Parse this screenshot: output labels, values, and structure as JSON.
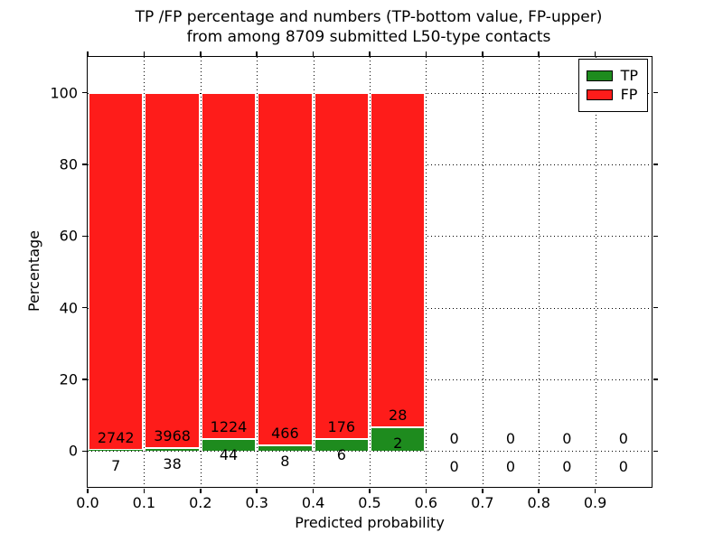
{
  "chart_data": {
    "type": "bar",
    "subtype": "stacked-percentage-histogram",
    "title_line1": "TP /FP percentage and numbers (TP-bottom value, FP-upper)",
    "title_line2": "from among 8709 submitted L50-type contacts",
    "xlabel": "Predicted probability",
    "ylabel": "Percentage",
    "xlim": [
      0.0,
      1.0
    ],
    "ylim": [
      -10,
      110
    ],
    "xticks": {
      "values": [
        0.0,
        0.1,
        0.2,
        0.3,
        0.4,
        0.5,
        0.6,
        0.7,
        0.8,
        0.9
      ],
      "labels": [
        "0.0",
        "0.1",
        "0.2",
        "0.3",
        "0.4",
        "0.5",
        "0.6",
        "0.7",
        "0.8",
        "0.9"
      ]
    },
    "yticks": {
      "values": [
        0,
        20,
        40,
        60,
        80,
        100
      ],
      "labels": [
        "0",
        "20",
        "40",
        "60",
        "80",
        "100"
      ]
    },
    "grid": "dotted",
    "bars": [
      {
        "range": [
          0.0,
          0.1
        ],
        "tp": 7,
        "fp": 2742
      },
      {
        "range": [
          0.1,
          0.2
        ],
        "tp": 38,
        "fp": 3968
      },
      {
        "range": [
          0.2,
          0.3
        ],
        "tp": 44,
        "fp": 1224
      },
      {
        "range": [
          0.3,
          0.4
        ],
        "tp": 8,
        "fp": 466
      },
      {
        "range": [
          0.4,
          0.5
        ],
        "tp": 6,
        "fp": 176
      },
      {
        "range": [
          0.5,
          0.6
        ],
        "tp": 2,
        "fp": 28
      },
      {
        "range": [
          0.6,
          0.7
        ],
        "tp": 0,
        "fp": 0
      },
      {
        "range": [
          0.7,
          0.8
        ],
        "tp": 0,
        "fp": 0
      },
      {
        "range": [
          0.8,
          0.9
        ],
        "tp": 0,
        "fp": 0
      },
      {
        "range": [
          0.9,
          1.0
        ],
        "tp": 0,
        "fp": 0
      }
    ],
    "colors": {
      "tp": "#1e8b1e",
      "fp": "#fe1c1a",
      "bar_edge": "#ffffff",
      "axis": "#000000"
    },
    "legend": {
      "position": "upper right",
      "items": [
        {
          "label": "TP",
          "color": "#1e8b1e"
        },
        {
          "label": "FP",
          "color": "#fe1c1a"
        }
      ]
    }
  }
}
